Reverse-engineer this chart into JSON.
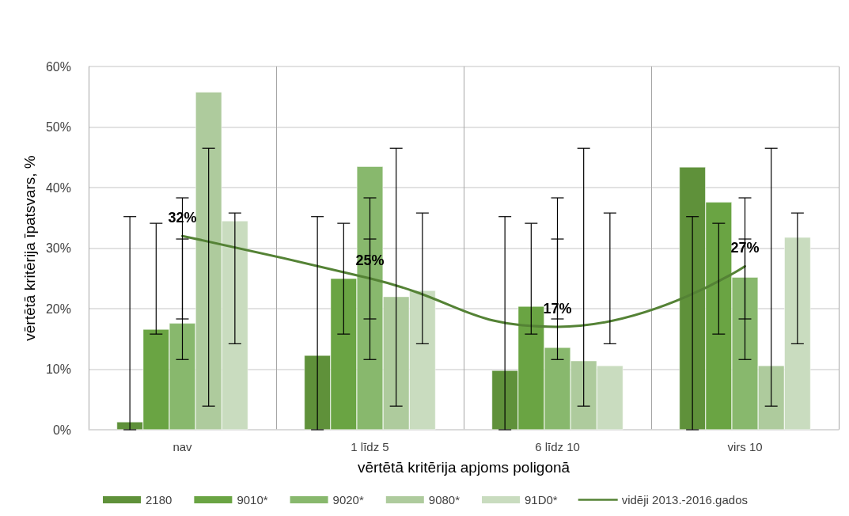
{
  "chart_data": {
    "type": "bar",
    "xlabel": "vērtētā kritērija apjoms poligonā",
    "ylabel": "vērtētā kritērija īpatsvars, %",
    "categories": [
      "nav",
      "1 līdz 5",
      "6 līdz 10",
      "virs 10"
    ],
    "series": [
      {
        "name": "2180",
        "color": "#5f913a",
        "values": [
          1.3,
          12.3,
          9.8,
          43.4
        ],
        "errors": [
          [
            0,
            35.2
          ],
          [
            0,
            35.2
          ],
          [
            0,
            35.2
          ],
          [
            0,
            35.2
          ]
        ]
      },
      {
        "name": "9010*",
        "color": "#6aa443",
        "values": [
          16.6,
          25.0,
          20.4,
          37.6
        ],
        "errors": [
          [
            15.8,
            34.1
          ],
          [
            15.8,
            34.1
          ],
          [
            15.8,
            34.1
          ],
          [
            15.8,
            34.1
          ]
        ]
      },
      {
        "name": "9020*",
        "color": "#88b86d",
        "values": [
          17.6,
          43.5,
          13.6,
          25.2
        ],
        "errors": [
          [
            11.6,
            38.3
          ],
          [
            11.6,
            38.3
          ],
          [
            11.6,
            38.3
          ],
          [
            11.6,
            38.3
          ]
        ]
      },
      {
        "name": "9080*",
        "color": "#aecb9d",
        "values": [
          55.8,
          22.0,
          11.4,
          10.6
        ],
        "errors": [
          [
            3.9,
            46.5
          ],
          [
            3.9,
            46.5
          ],
          [
            3.9,
            46.5
          ],
          [
            3.9,
            46.5
          ]
        ]
      },
      {
        "name": "91D0*",
        "color": "#c9dcbf",
        "values": [
          34.5,
          23.0,
          10.6,
          31.8
        ],
        "errors": [
          [
            14.2,
            35.8
          ],
          [
            14.2,
            35.8
          ],
          [
            14.2,
            35.8
          ],
          [
            14.2,
            35.8
          ]
        ]
      },
      {
        "name": "vidēji 2013.-2016.gados",
        "type": "line",
        "color": "#548235",
        "values": [
          32,
          25,
          17,
          27
        ],
        "value_labels": [
          "32%",
          "25%",
          "17%",
          "27%"
        ],
        "errors": [
          [
            18.3,
            31.5
          ],
          [
            18.3,
            31.5
          ],
          [
            18.3,
            31.5
          ],
          [
            18.3,
            31.5
          ]
        ]
      }
    ],
    "ylim": [
      0,
      60
    ],
    "yticks": [
      {
        "value": 0,
        "label": "0%"
      },
      {
        "value": 10,
        "label": "10%"
      },
      {
        "value": 20,
        "label": "20%"
      },
      {
        "value": 30,
        "label": "30%"
      },
      {
        "value": 40,
        "label": "40%"
      },
      {
        "value": 50,
        "label": "50%"
      },
      {
        "value": 60,
        "label": "60%"
      }
    ],
    "grid": true,
    "legend": "bottom",
    "marker": "none",
    "line_style": "solid"
  }
}
